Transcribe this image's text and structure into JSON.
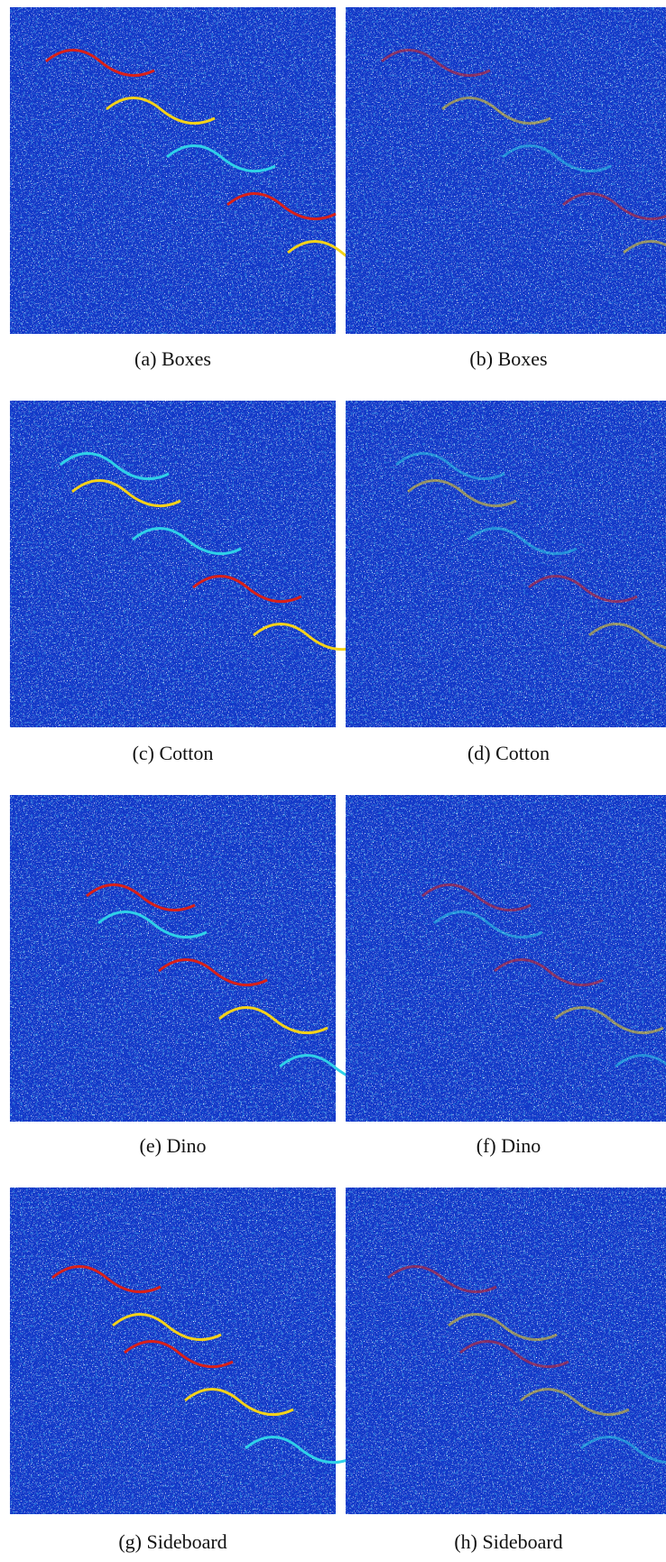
{
  "figure": {
    "panels": [
      {
        "caption": "(a)  Boxes"
      },
      {
        "caption": "(b)  Boxes"
      },
      {
        "caption": "(c)  Cotton"
      },
      {
        "caption": "(d)  Cotton"
      },
      {
        "caption": "(e)  Dino"
      },
      {
        "caption": "(f)  Dino"
      },
      {
        "caption": "(g)  Sideboard"
      },
      {
        "caption": "(h)  Sideboard"
      }
    ]
  }
}
